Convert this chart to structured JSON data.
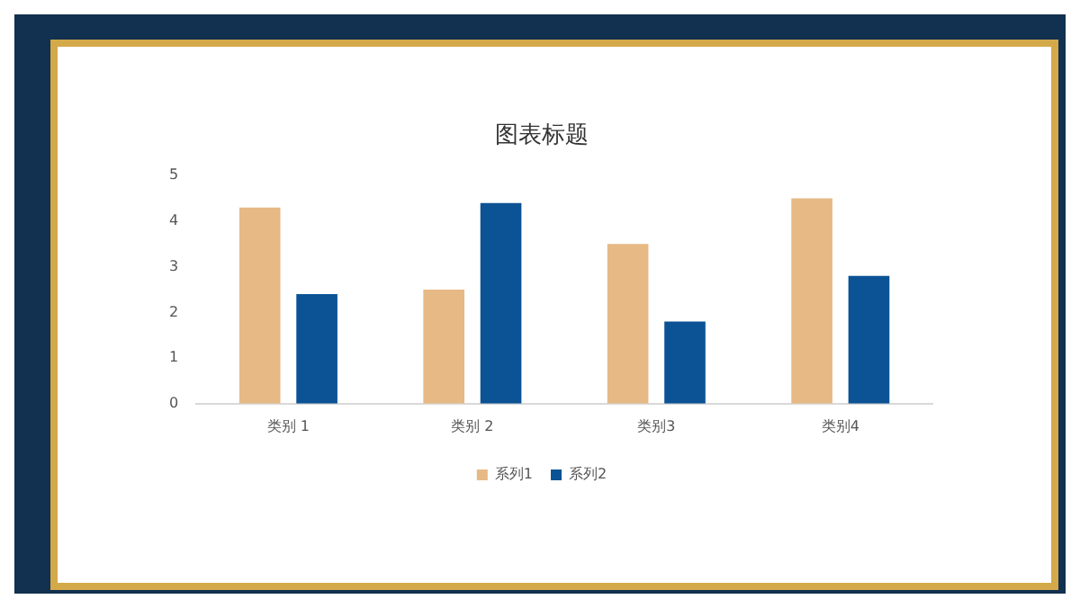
{
  "chart_data": {
    "type": "bar",
    "title": "图表标题",
    "categories": [
      "类别 1",
      "类别 2",
      "类别3",
      "类别4"
    ],
    "series": [
      {
        "name": "系列1",
        "color": "#e6b985",
        "values": [
          4.3,
          2.5,
          3.5,
          4.5
        ]
      },
      {
        "name": "系列2",
        "color": "#0b5394",
        "values": [
          2.4,
          4.4,
          1.8,
          2.8
        ]
      }
    ],
    "ylim": [
      0,
      5
    ],
    "yticks": [
      0,
      1,
      2,
      3,
      4,
      5
    ],
    "grid": false,
    "legend": "bottom"
  }
}
